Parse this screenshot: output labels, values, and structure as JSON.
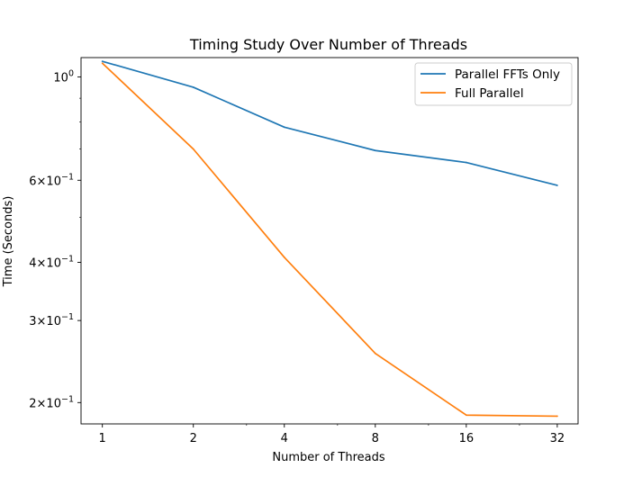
{
  "chart_data": {
    "type": "line",
    "title": "Timing Study Over Number of Threads",
    "xlabel": "Number of Threads",
    "ylabel": "Time (Seconds)",
    "x_scale": "log2",
    "y_scale": "log",
    "x": [
      1,
      2,
      4,
      8,
      16,
      32
    ],
    "xlim": [
      0.85,
      37.5
    ],
    "ylim": [
      0.18,
      1.1
    ],
    "x_ticks": [
      {
        "value": 1,
        "label": "1"
      },
      {
        "value": 2,
        "label": "2"
      },
      {
        "value": 4,
        "label": "4"
      },
      {
        "value": 8,
        "label": "8"
      },
      {
        "value": 16,
        "label": "16"
      },
      {
        "value": 32,
        "label": "32"
      }
    ],
    "y_ticks": [
      {
        "value": 1.0,
        "label_base": "10",
        "label_exp": "0"
      },
      {
        "value": 0.6,
        "label_base": "6×10",
        "label_exp": "−1"
      },
      {
        "value": 0.4,
        "label_base": "4×10",
        "label_exp": "−1"
      },
      {
        "value": 0.3,
        "label_base": "3×10",
        "label_exp": "−1"
      },
      {
        "value": 0.2,
        "label_base": "2×10",
        "label_exp": "−1"
      }
    ],
    "grid": false,
    "legend_position": "top-right",
    "series": [
      {
        "name": "Parallel FFTs Only",
        "color": "#1f77b4",
        "values": [
          1.08,
          0.95,
          0.78,
          0.695,
          0.655,
          0.585
        ]
      },
      {
        "name": "Full Parallel",
        "color": "#ff7f0e",
        "values": [
          1.07,
          0.7,
          0.41,
          0.255,
          0.188,
          0.187
        ]
      }
    ]
  }
}
